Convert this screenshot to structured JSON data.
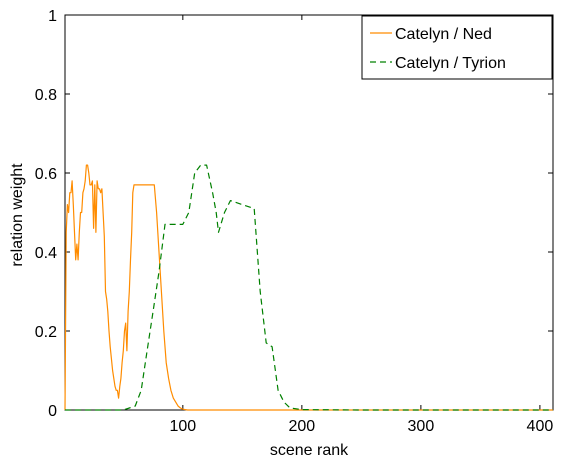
{
  "chart_data": {
    "type": "line",
    "title": "",
    "xlabel": "scene rank",
    "ylabel": "relation weight",
    "xlim": [
      1,
      411
    ],
    "ylim": [
      0,
      1
    ],
    "xticks": [
      100,
      200,
      300,
      400
    ],
    "xtick_labels": [
      "100",
      "200",
      "300",
      "400"
    ],
    "yticks": [
      0,
      0.2,
      0.4,
      0.6,
      0.8,
      1
    ],
    "ytick_labels": [
      "0",
      "0.2",
      "0.4",
      "0.6",
      "0.8",
      "1"
    ],
    "grid": false,
    "legend_position": "top-right",
    "series": [
      {
        "name": "Catelyn / Ned",
        "color": "#ff8c00",
        "dash": "solid",
        "x": [
          1,
          2,
          3,
          4,
          5,
          6,
          7,
          8,
          9,
          10,
          11,
          12,
          13,
          14,
          15,
          16,
          17,
          18,
          19,
          20,
          21,
          22,
          23,
          24,
          25,
          26,
          27,
          28,
          29,
          30,
          31,
          32,
          33,
          34,
          35,
          36,
          37,
          38,
          39,
          40,
          41,
          42,
          43,
          44,
          45,
          46,
          47,
          48,
          49,
          50,
          51,
          52,
          53,
          54,
          55,
          56,
          57,
          58,
          59,
          60,
          62,
          64,
          66,
          68,
          70,
          72,
          74,
          76,
          78,
          80,
          82,
          84,
          86,
          88,
          90,
          92,
          94,
          96,
          98,
          100,
          102,
          104,
          106,
          110,
          150,
          200,
          250,
          300,
          350,
          400,
          411
        ],
        "y": [
          0.0,
          0.45,
          0.52,
          0.5,
          0.55,
          0.55,
          0.58,
          0.52,
          0.45,
          0.38,
          0.42,
          0.38,
          0.45,
          0.5,
          0.5,
          0.55,
          0.56,
          0.58,
          0.62,
          0.62,
          0.6,
          0.57,
          0.57,
          0.58,
          0.46,
          0.57,
          0.45,
          0.58,
          0.56,
          0.56,
          0.55,
          0.56,
          0.5,
          0.44,
          0.3,
          0.28,
          0.25,
          0.2,
          0.16,
          0.13,
          0.1,
          0.08,
          0.06,
          0.05,
          0.05,
          0.03,
          0.06,
          0.08,
          0.12,
          0.15,
          0.2,
          0.22,
          0.15,
          0.25,
          0.3,
          0.38,
          0.45,
          0.55,
          0.57,
          0.57,
          0.57,
          0.57,
          0.57,
          0.57,
          0.57,
          0.57,
          0.57,
          0.57,
          0.5,
          0.4,
          0.3,
          0.2,
          0.12,
          0.08,
          0.05,
          0.03,
          0.02,
          0.01,
          0.005,
          0.002,
          0.001,
          0,
          0,
          0,
          0,
          0,
          0,
          0,
          0,
          0,
          0
        ]
      },
      {
        "name": "Catelyn / Tyrion",
        "color": "#008000",
        "dash": "6,4",
        "x": [
          1,
          40,
          50,
          55,
          60,
          65,
          70,
          75,
          80,
          85,
          90,
          100,
          105,
          110,
          115,
          120,
          125,
          128,
          130,
          135,
          140,
          150,
          160,
          165,
          170,
          175,
          180,
          185,
          190,
          200,
          250,
          300,
          350,
          400,
          411
        ],
        "y": [
          0,
          0,
          0,
          0.005,
          0.01,
          0.05,
          0.15,
          0.25,
          0.35,
          0.47,
          0.47,
          0.47,
          0.5,
          0.6,
          0.62,
          0.62,
          0.55,
          0.5,
          0.45,
          0.5,
          0.53,
          0.52,
          0.51,
          0.3,
          0.17,
          0.16,
          0.05,
          0.02,
          0.005,
          0.001,
          0,
          0,
          0,
          0,
          0
        ]
      }
    ]
  }
}
